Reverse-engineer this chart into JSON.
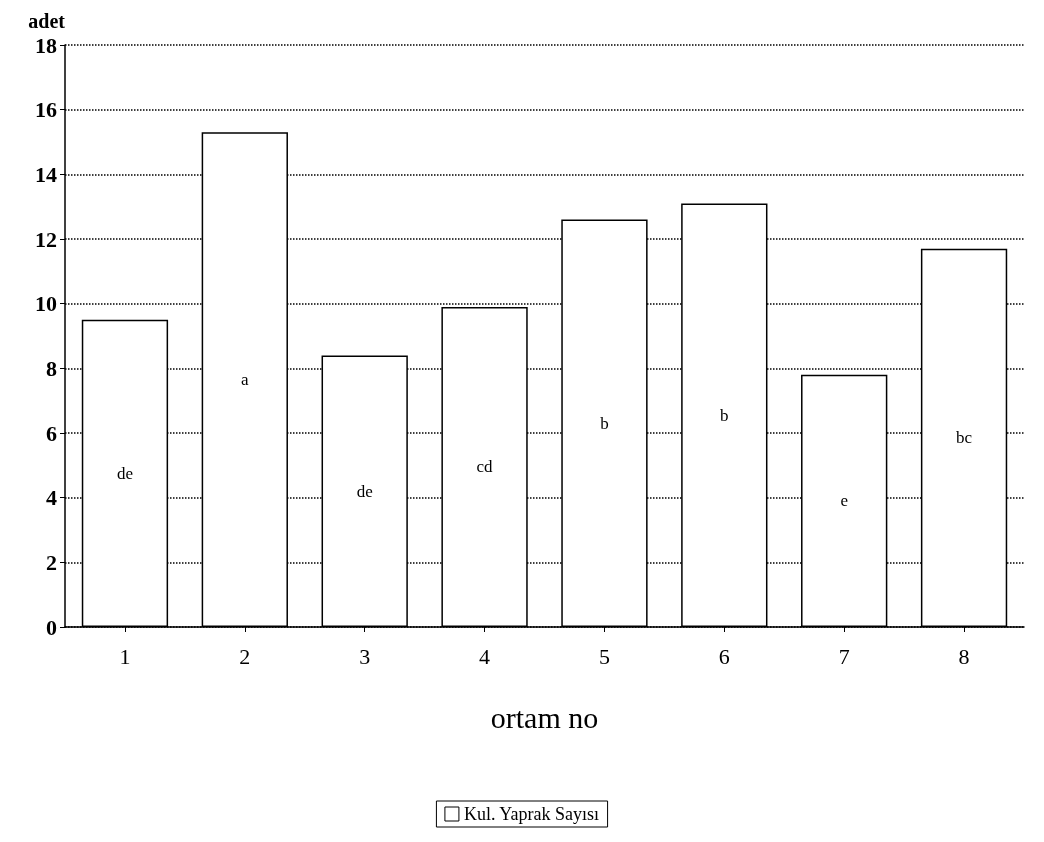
{
  "chart_data": {
    "type": "bar",
    "xlabel": "ortam no",
    "ylabel": "adet",
    "categories": [
      "1",
      "2",
      "3",
      "4",
      "5",
      "6",
      "7",
      "8"
    ],
    "series": [
      {
        "name": "Kul. Yaprak Sayısı",
        "color": "#ffffff",
        "values": [
          9.5,
          15.3,
          8.4,
          9.9,
          12.6,
          13.1,
          7.8,
          11.7
        ],
        "value_labels": [
          "de",
          "a",
          "de",
          "cd",
          "b",
          "b",
          "e",
          "bc"
        ]
      }
    ],
    "ylim": [
      0,
      18
    ],
    "yticks": [
      0,
      2,
      4,
      6,
      8,
      10,
      12,
      14,
      16,
      18
    ],
    "grid": "y",
    "legend": "bottom"
  }
}
